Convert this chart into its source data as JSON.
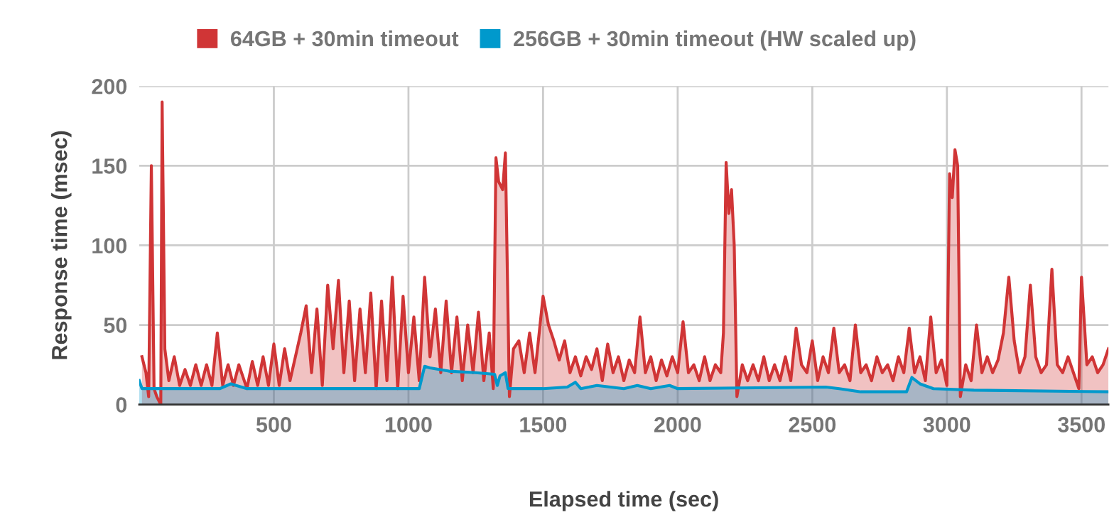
{
  "chart_data": {
    "type": "area",
    "xlabel": "Elapsed time (sec)",
    "ylabel": "Response time (msec)",
    "xlim": [
      0,
      3600
    ],
    "xticks": [
      500,
      1000,
      1500,
      2000,
      2500,
      3000,
      3500
    ],
    "ylim": [
      0,
      200
    ],
    "yticks": [
      0,
      50,
      100,
      150,
      200
    ],
    "grid": true,
    "legend": "top",
    "series": [
      {
        "name": "64GB + 30min timeout",
        "color": "#d03536",
        "x": [
          10,
          25,
          35,
          45,
          55,
          65,
          80,
          85,
          95,
          110,
          130,
          150,
          170,
          190,
          210,
          230,
          250,
          270,
          290,
          310,
          330,
          350,
          370,
          400,
          420,
          440,
          460,
          480,
          500,
          520,
          540,
          560,
          580,
          600,
          620,
          640,
          660,
          680,
          700,
          720,
          740,
          760,
          780,
          800,
          820,
          840,
          860,
          880,
          900,
          920,
          940,
          960,
          980,
          1000,
          1020,
          1040,
          1060,
          1080,
          1100,
          1120,
          1140,
          1160,
          1180,
          1200,
          1220,
          1240,
          1260,
          1280,
          1300,
          1315,
          1325,
          1335,
          1350,
          1360,
          1375,
          1390,
          1410,
          1430,
          1450,
          1470,
          1500,
          1520,
          1540,
          1560,
          1580,
          1600,
          1620,
          1640,
          1660,
          1680,
          1700,
          1720,
          1740,
          1760,
          1780,
          1800,
          1820,
          1840,
          1860,
          1880,
          1900,
          1920,
          1940,
          1960,
          1980,
          2000,
          2020,
          2040,
          2060,
          2080,
          2100,
          2120,
          2140,
          2160,
          2170,
          2180,
          2190,
          2200,
          2210,
          2220,
          2240,
          2260,
          2280,
          2300,
          2320,
          2340,
          2360,
          2380,
          2400,
          2420,
          2440,
          2460,
          2480,
          2500,
          2520,
          2540,
          2560,
          2580,
          2600,
          2620,
          2640,
          2660,
          2680,
          2700,
          2720,
          2740,
          2760,
          2780,
          2800,
          2820,
          2840,
          2860,
          2880,
          2900,
          2920,
          2940,
          2960,
          2980,
          3000,
          3010,
          3020,
          3030,
          3040,
          3050,
          3070,
          3090,
          3110,
          3130,
          3150,
          3170,
          3190,
          3210,
          3230,
          3250,
          3270,
          3290,
          3310,
          3330,
          3350,
          3370,
          3390,
          3410,
          3430,
          3450,
          3470,
          3490,
          3500,
          3520,
          3540,
          3560,
          3580,
          3600
        ],
        "values": [
          30,
          20,
          5,
          150,
          10,
          5,
          0,
          190,
          35,
          15,
          30,
          12,
          22,
          12,
          25,
          12,
          25,
          12,
          45,
          12,
          25,
          12,
          25,
          10,
          27,
          12,
          30,
          12,
          38,
          12,
          35,
          15,
          30,
          45,
          62,
          20,
          60,
          12,
          75,
          35,
          78,
          20,
          65,
          15,
          60,
          20,
          70,
          10,
          65,
          15,
          80,
          10,
          68,
          20,
          55,
          15,
          80,
          30,
          60,
          20,
          65,
          20,
          55,
          15,
          50,
          20,
          58,
          15,
          45,
          10,
          155,
          140,
          135,
          158,
          5,
          35,
          40,
          20,
          45,
          20,
          68,
          50,
          40,
          28,
          40,
          20,
          30,
          18,
          30,
          22,
          35,
          15,
          38,
          20,
          30,
          15,
          28,
          20,
          55,
          20,
          30,
          15,
          28,
          18,
          30,
          20,
          52,
          20,
          25,
          15,
          30,
          15,
          25,
          20,
          45,
          152,
          120,
          135,
          100,
          5,
          25,
          15,
          25,
          15,
          30,
          15,
          25,
          15,
          30,
          15,
          48,
          25,
          20,
          40,
          15,
          30,
          20,
          48,
          20,
          25,
          15,
          50,
          20,
          25,
          15,
          30,
          20,
          25,
          15,
          30,
          20,
          48,
          20,
          30,
          15,
          55,
          20,
          28,
          12,
          145,
          130,
          160,
          150,
          5,
          25,
          15,
          50,
          20,
          30,
          20,
          28,
          45,
          80,
          40,
          20,
          30,
          75,
          30,
          20,
          25,
          85,
          25,
          20,
          30,
          20,
          10,
          80,
          25,
          30,
          20,
          25,
          35
        ]
      },
      {
        "name": "256GB + 30min timeout (HW scaled up)",
        "color": "#0099cc",
        "x": [
          0,
          10,
          300,
          340,
          400,
          1040,
          1060,
          1080,
          1150,
          1250,
          1320,
          1330,
          1340,
          1360,
          1370,
          1500,
          1590,
          1620,
          1640,
          1700,
          1800,
          1850,
          1900,
          1970,
          2000,
          2550,
          2600,
          2680,
          2850,
          2870,
          2900,
          2950,
          3100,
          3600
        ],
        "values": [
          15,
          10,
          10,
          13,
          10,
          10,
          24,
          23,
          21,
          20,
          19,
          12,
          18,
          20,
          10,
          10,
          11,
          14,
          10,
          12,
          10,
          12,
          10,
          12,
          10,
          11,
          10,
          8,
          8,
          17,
          13,
          10,
          9,
          8
        ]
      }
    ]
  }
}
